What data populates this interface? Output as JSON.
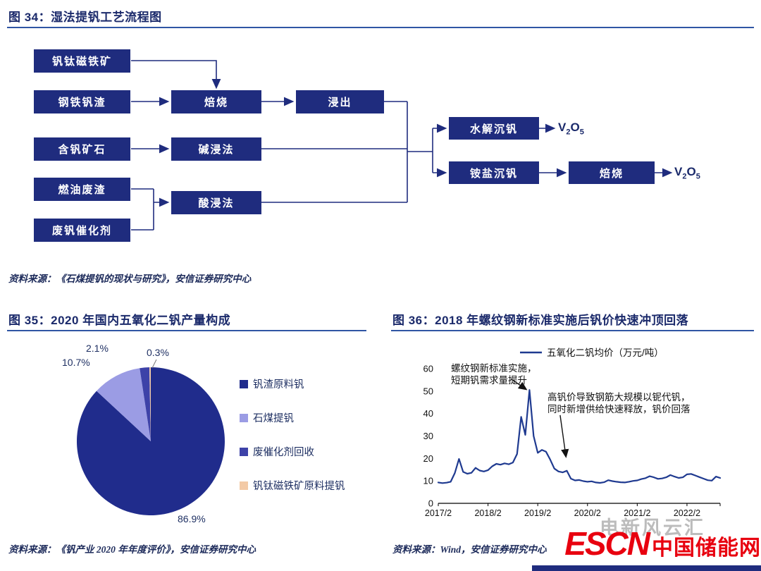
{
  "figure34": {
    "title": "图 34：湿法提钒工艺流程图",
    "source": "资料来源：《石煤提钒的现状与研究》，安信证券研究中心",
    "boxes": {
      "vtm": "钒钛磁铁矿",
      "slag": "钢铁钒渣",
      "ore": "含钒矿石",
      "residue": "燃油废渣",
      "catalyst": "废钒催化剂",
      "roast1": "焙烧",
      "leach": "浸出",
      "alkali": "碱浸法",
      "acid": "酸浸法",
      "hydrolysis": "水解沉钒",
      "ammonium": "铵盐沉钒",
      "roast2": "焙烧"
    },
    "v2o5": [
      "V",
      "2",
      "O",
      "5"
    ]
  },
  "figure35": {
    "title": "图 35：2020 年国内五氧化二钒产量构成",
    "source": "资料来源：《钒产业 2020 年年度评价》，安信证券研究中心"
  },
  "figure36": {
    "title": "图 36：2018 年螺纹钢新标准实施后钒价快速冲顶回落",
    "source": "资料来源：Wind，安信证券研究中心"
  },
  "footer": {
    "watermark": "电新风云汇",
    "logo_escn": "ESCN",
    "logo_cn": "中国储能网",
    "logo_color": "#e8000f"
  },
  "chart_data": [
    {
      "type": "pie",
      "title": "2020 年国内五氧化二钒产量构成",
      "labels": [
        "钒渣原料钒",
        "石煤提钒",
        "废催化剂回收",
        "钒钛磁铁矿原料提钒"
      ],
      "values": [
        86.9,
        10.7,
        2.1,
        0.3
      ],
      "value_labels": [
        "86.9%",
        "10.7%",
        "2.1%",
        "0.3%"
      ],
      "colors": [
        "#202c8c",
        "#9b9ce4",
        "#3d42a8",
        "#f3caa6"
      ],
      "start_angle_deg": 0,
      "direction": "clockwise",
      "legend_position": "right"
    },
    {
      "type": "line",
      "title": "2018 年螺纹钢新标准实施后钒价快速冲顶回落",
      "legend": "五氧化二钒均价（万元/吨）",
      "line_color": "#1f3a90",
      "ylim": [
        0,
        60
      ],
      "y_ticks": [
        0,
        10,
        20,
        30,
        40,
        50,
        60
      ],
      "x_tick_labels": [
        "2017/2",
        "2018/2",
        "2019/2",
        "2020/2",
        "2021/2",
        "2022/2"
      ],
      "x_tick_indices": [
        0,
        12,
        24,
        36,
        48,
        60
      ],
      "values": [
        9.3,
        9.0,
        9.2,
        9.6,
        13.5,
        19.8,
        14.0,
        13.2,
        13.6,
        15.8,
        14.6,
        14.2,
        14.8,
        16.5,
        17.6,
        17.2,
        17.8,
        17.4,
        18.2,
        22.0,
        38.5,
        30.5,
        50.5,
        30.0,
        22.5,
        23.8,
        23.0,
        19.5,
        15.5,
        14.2,
        13.8,
        14.5,
        11.0,
        10.2,
        10.4,
        9.9,
        9.6,
        9.8,
        9.3,
        9.1,
        9.4,
        10.3,
        9.9,
        9.6,
        9.4,
        9.3,
        9.6,
        10.0,
        10.2,
        10.8,
        11.2,
        12.1,
        11.6,
        10.9,
        11.1,
        11.6,
        12.6,
        11.9,
        11.3,
        11.6,
        12.9,
        13.1,
        12.4,
        11.7,
        11.0,
        10.3,
        10.1,
        11.9,
        11.3
      ],
      "annotations": [
        {
          "lines": [
            "螺纹钢新标准实施，",
            "短期钒需求量提升"
          ],
          "text_pos": [
            85,
            53
          ],
          "arrow": {
            "from": [
              17.5,
              55.5
            ],
            "to": [
              21.2,
              50.8
            ]
          }
        },
        {
          "lines": [
            "高钒价导致钢筋大规模以铌代钒，",
            "同时新增供给快速释放，钒价回落"
          ],
          "text_pos": [
            222,
            94
          ],
          "arrow": {
            "from": [
              29.4,
              39.3
            ],
            "to": [
              30.8,
              20.8
            ]
          }
        }
      ]
    }
  ]
}
